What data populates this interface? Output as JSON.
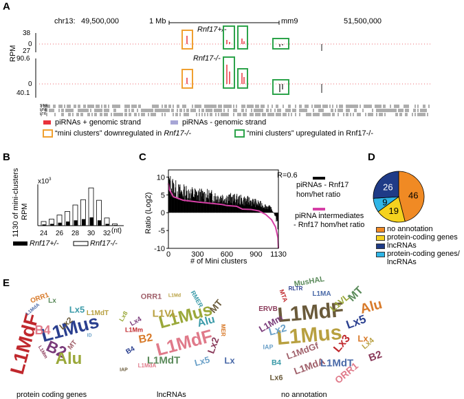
{
  "panels": {
    "a": "A",
    "b": "B",
    "c": "C",
    "d": "D",
    "e": "E"
  },
  "panel_a": {
    "chrom": "chr13:",
    "coord_left": "49,500,000",
    "coord_right": "51,500,000",
    "scale_label": "1 Mb",
    "assembly": "mm9",
    "track1_label": "Rnf17+/-",
    "track2_label": "Rnf17-/-",
    "ylabel": "RPM",
    "ticks_t1": [
      "38",
      "0",
      "27"
    ],
    "ticks_t2": [
      "90.6",
      "0",
      "40.1"
    ],
    "repeat_labels": [
      "SINE",
      "LINE",
      "LTR"
    ],
    "legend": {
      "plus": "piRNAs + genomic strand",
      "minus": "piRNAs - genomic strand",
      "down": "“mini clusters” downregulated in ",
      "down_italic": "Rnf17-/-",
      "up": "“mini clusters” upregulated in Rnf17-/-"
    },
    "colors": {
      "plus": "#e8323c",
      "minus": "#a7a6d6",
      "down": "#f0a030",
      "up": "#2ca34a"
    }
  },
  "panel_b": {
    "ylabel_1": "1130 of mini-clusters",
    "ylabel_2": "RPM",
    "multiplier": "x10",
    "multiplier_exp": "3",
    "xunit": "(nt)",
    "legend_het": "Rnf17+/-",
    "legend_ko": "Rnf17-/-"
  },
  "panel_c": {
    "annotation": "R=0.6",
    "ylabel": "Ratio (Log2)",
    "xlabel": "# of Mini clusters",
    "legend_1": [
      "piRNAs - Rnf17",
      "hom/het ratio"
    ],
    "legend_2": [
      "piRNA intermediates",
      "- Rnf17 hom/het ratio"
    ],
    "colors": {
      "bars": "#000000",
      "line": "#d63fa6"
    }
  },
  "panel_d": {
    "legend": [
      "no annotation",
      "protein-coding genes",
      "lncRNAs",
      "protein-coding genes/",
      "lncRNAs"
    ]
  },
  "panel_e": {
    "captions": [
      "protein coding genes",
      "lncRNAs",
      "no annotation"
    ],
    "cloud1": [
      "L1MdF",
      "L1Mus",
      "B2",
      "Alu",
      "B4",
      "Lx5",
      "Lx2",
      "L1MdT",
      "ORR1",
      "Lx",
      "MT",
      "L1MdA",
      "L1Mm",
      "ID"
    ],
    "cloud2": [
      "L1Mus",
      "L1MdF",
      "Alu",
      "MT",
      "L1VL",
      "B2",
      "L1MdT",
      "ORR1",
      "Lx",
      "Lx2",
      "Lx5",
      "L1Mm",
      "B4",
      "Lx4",
      "Lx8",
      "L1MdA",
      "RMER",
      "IAP",
      "L1Md",
      "MER"
    ],
    "cloud3": [
      "L1MdF",
      "L1Mus",
      "Alu",
      "MT",
      "L1MdA",
      "L1MdT",
      "B2",
      "Lx2",
      "Lx3",
      "Lx5",
      "L1Mm",
      "L1VL",
      "ORR1",
      "B4",
      "Lx6",
      "Lx4",
      "Lx",
      "MusHAL",
      "L1MdGf",
      "L1MA",
      "ERVB",
      "IAP",
      "MTA",
      "RLTR"
    ]
  },
  "chart_data": [
    {
      "panel": "A",
      "type": "area",
      "title": "",
      "xlabel": "chr13",
      "xlim": [
        49500000,
        51500000
      ],
      "series": [
        {
          "name": "Rnf17+/-",
          "ylim": [
            -27,
            38
          ]
        },
        {
          "name": "Rnf17-/-",
          "ylim": [
            -40.1,
            90.6
          ]
        }
      ],
      "ylabel": "RPM"
    },
    {
      "panel": "B",
      "type": "bar",
      "categories": [
        "24",
        "25",
        "26",
        "27",
        "28",
        "29",
        "30",
        "31",
        "32",
        "33"
      ],
      "tick_labels": [
        "24",
        "26",
        "28",
        "30",
        "32"
      ],
      "xlabel": "(nt)",
      "ylabel": "1130 of mini-clusters RPM",
      "series": [
        {
          "name": "Rnf17+/-",
          "values": [
            0.2,
            0.3,
            0.5,
            0.7,
            0.9,
            1.1,
            1.4,
            0.9,
            0.3,
            0.1
          ]
        },
        {
          "name": "Rnf17-/-",
          "values": [
            0.7,
            1.1,
            1.8,
            2.4,
            3.5,
            4.4,
            6.4,
            4.3,
            1.3,
            0.3
          ]
        }
      ],
      "ylim": [
        0,
        7
      ]
    },
    {
      "panel": "C",
      "type": "bar",
      "xlabel": "# of Mini clusters",
      "ylabel": "Ratio (Log2)",
      "xlim": [
        0,
        1130
      ],
      "ylim": [
        -10,
        12
      ],
      "xticks": [
        0,
        300,
        600,
        900,
        1130
      ],
      "yticks": [
        -10,
        -5,
        0,
        5,
        10
      ],
      "annotation": "R=0.6",
      "series": [
        {
          "name": "piRNAs - Rnf17 hom/het ratio",
          "profile": [
            [
              0,
              10.5
            ],
            [
              20,
              8.5
            ],
            [
              100,
              6.5
            ],
            [
              300,
              5.5
            ],
            [
              600,
              4.5
            ],
            [
              850,
              3.5
            ],
            [
              950,
              2.5
            ],
            [
              1050,
              1.5
            ],
            [
              1100,
              -1
            ],
            [
              1130,
              -5
            ]
          ]
        },
        {
          "name": "piRNA intermediates - Rnf17 hom/het ratio",
          "profile": [
            [
              0,
              8.2
            ],
            [
              10,
              6.5
            ],
            [
              50,
              4.5
            ],
            [
              150,
              3.5
            ],
            [
              300,
              3.0
            ],
            [
              450,
              2.6
            ],
            [
              550,
              2.3
            ],
            [
              600,
              2.0
            ],
            [
              700,
              1.8
            ],
            [
              760,
              1.0
            ],
            [
              850,
              0.9
            ],
            [
              930,
              0.5
            ],
            [
              1000,
              -0.5
            ],
            [
              1060,
              -2
            ],
            [
              1100,
              -4
            ],
            [
              1125,
              -7
            ],
            [
              1130,
              -10
            ]
          ]
        }
      ]
    },
    {
      "panel": "D",
      "type": "pie",
      "categories": [
        "no annotation",
        "protein-coding genes",
        "lncRNAs",
        "protein-coding genes/lncRNAs"
      ],
      "values": [
        46,
        19,
        26,
        9
      ],
      "colors": [
        "#f08a24",
        "#f5d21e",
        "#1f3b87",
        "#2fb5e6"
      ]
    }
  ]
}
